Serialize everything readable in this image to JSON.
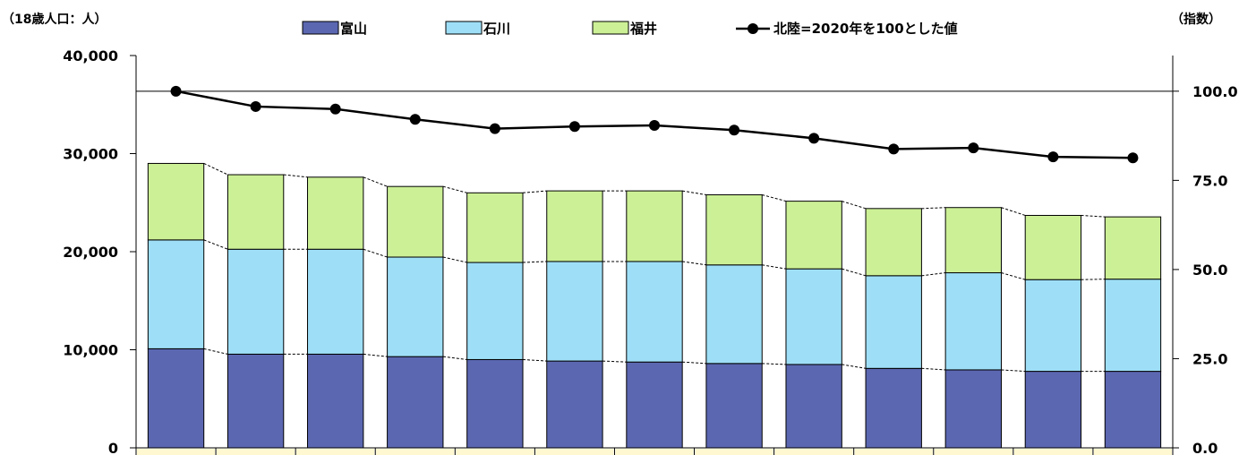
{
  "chart_data": {
    "type": "bar",
    "stacked": true,
    "categories": [
      "",
      "",
      "",
      "",
      "",
      "",
      "",
      "",
      "",
      "",
      "",
      "",
      ""
    ],
    "series": [
      {
        "name": "富山",
        "type": "bar",
        "axis": "left",
        "color": "#5b67b1",
        "values": [
          10100,
          9550,
          9550,
          9300,
          9000,
          8850,
          8750,
          8600,
          8500,
          8100,
          7950,
          7800,
          7800
        ]
      },
      {
        "name": "石川",
        "type": "bar",
        "axis": "left",
        "color": "#9edff7",
        "values": [
          11100,
          10700,
          10700,
          10150,
          9900,
          10150,
          10250,
          10050,
          9750,
          9450,
          9900,
          9350,
          9400
        ]
      },
      {
        "name": "福井",
        "type": "bar",
        "axis": "left",
        "color": "#ccf096",
        "values": [
          7800,
          7600,
          7350,
          7200,
          7100,
          7200,
          7200,
          7150,
          6900,
          6850,
          6650,
          6550,
          6350
        ]
      },
      {
        "name": "北陸=2020年を100とした値",
        "type": "line",
        "axis": "right",
        "color": "#000000",
        "values": [
          100.0,
          95.7,
          95.0,
          92.1,
          89.5,
          90.1,
          90.4,
          89.1,
          86.8,
          83.8,
          84.1,
          81.6,
          81.3
        ]
      }
    ],
    "y_left": {
      "label": "（18歳人口：人）",
      "min": 0,
      "max": 40000,
      "ticks": [
        "0",
        "10,000",
        "20,000",
        "30,000",
        "40,000"
      ]
    },
    "y_right": {
      "label": "（指数）",
      "min": 0,
      "max": 110,
      "ticks": [
        "0.0",
        "25.0",
        "50.0",
        "75.0",
        "100.0"
      ]
    },
    "reference_line": {
      "axis": "right",
      "value": 100
    },
    "grid": false,
    "legend_position": "top"
  }
}
